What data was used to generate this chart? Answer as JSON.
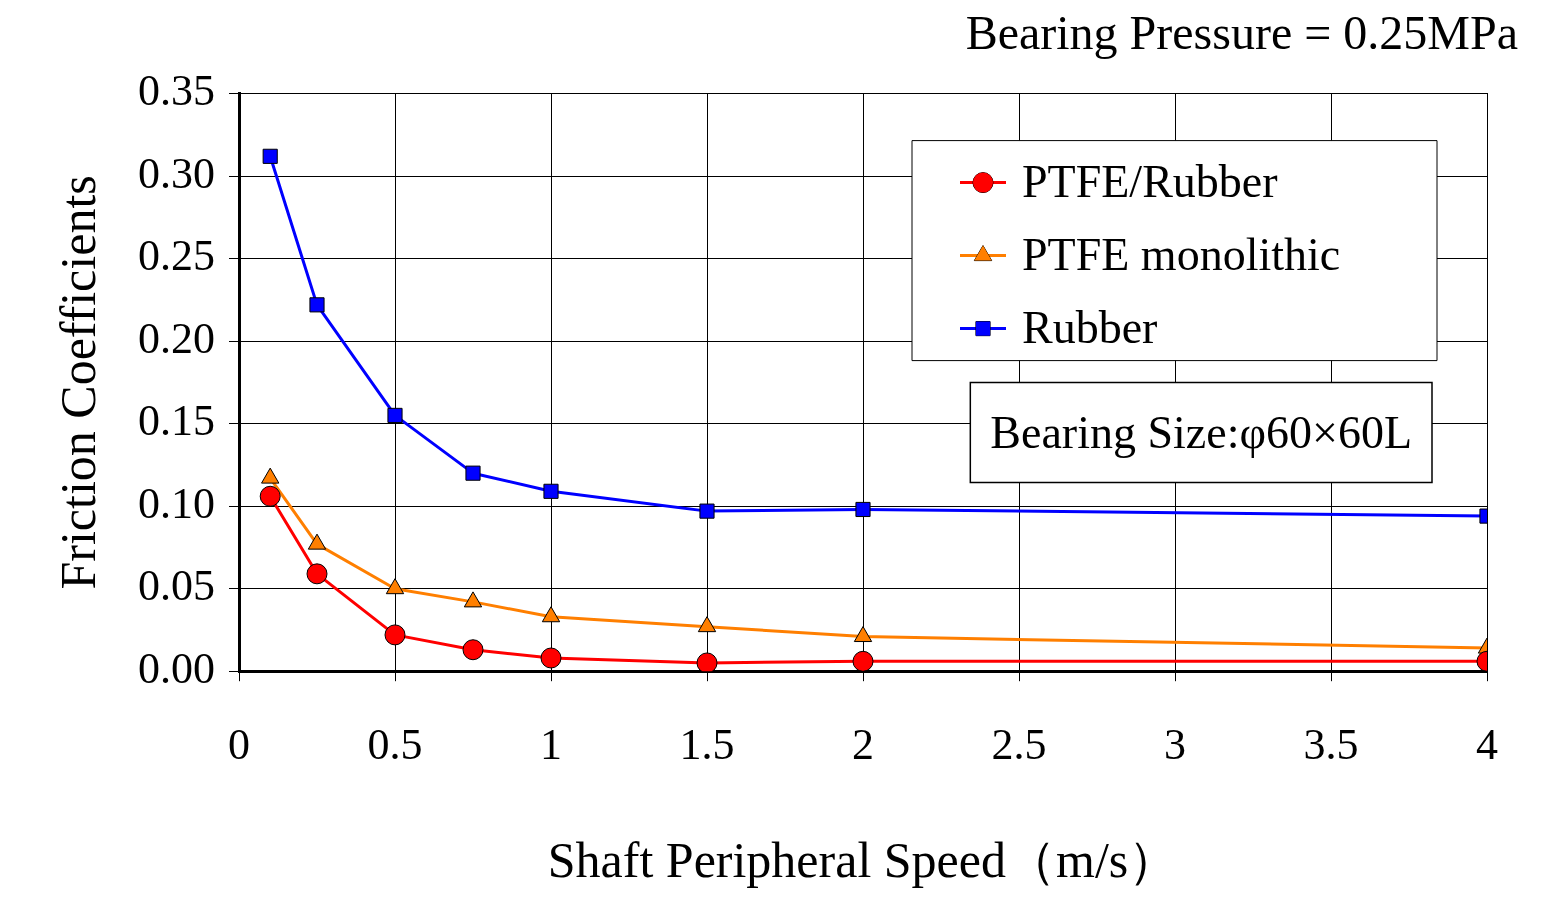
{
  "chart_data": {
    "type": "line",
    "title": "Bearing Pressure = 0.25MPa",
    "xlabel": "Shaft Peripheral Speed（m/s）",
    "ylabel": "Friction Coefficients",
    "x": [
      0.1,
      0.25,
      0.5,
      0.75,
      1,
      1.5,
      2,
      4
    ],
    "series": [
      {
        "name": "PTFE/Rubber",
        "color": "#ff0000",
        "marker": "circle",
        "values": [
          0.106,
          0.059,
          0.022,
          0.013,
          0.008,
          0.005,
          0.006,
          0.006
        ]
      },
      {
        "name": "PTFE monolithic",
        "color": "#ff7f00",
        "marker": "triangle",
        "values": [
          0.117,
          0.077,
          0.05,
          0.042,
          0.033,
          0.027,
          0.021,
          0.014
        ]
      },
      {
        "name": "Rubber",
        "color": "#0000ff",
        "marker": "square",
        "values": [
          0.312,
          0.222,
          0.155,
          0.12,
          0.109,
          0.097,
          0.098,
          0.094
        ]
      }
    ],
    "xlim": [
      0,
      4
    ],
    "xticks": [
      0,
      0.5,
      1,
      1.5,
      2,
      2.5,
      3,
      3.5,
      4
    ],
    "ylim": [
      0,
      0.35
    ],
    "yticks": [
      {
        "value": 0,
        "label": "0.00"
      },
      {
        "value": 0.05,
        "label": "0.05"
      },
      {
        "value": 0.1,
        "label": "0.10"
      },
      {
        "value": 0.15,
        "label": "0.15"
      },
      {
        "value": 0.2,
        "label": "0.20"
      },
      {
        "value": 0.25,
        "label": "0.25"
      },
      {
        "value": 0.3,
        "label": "0.30"
      },
      {
        "value": 0.35,
        "label": "0.35"
      }
    ],
    "grid": true,
    "legend": "top right",
    "line_style": "solid",
    "annotations": [
      "Bearing Size:φ60×60L"
    ]
  }
}
